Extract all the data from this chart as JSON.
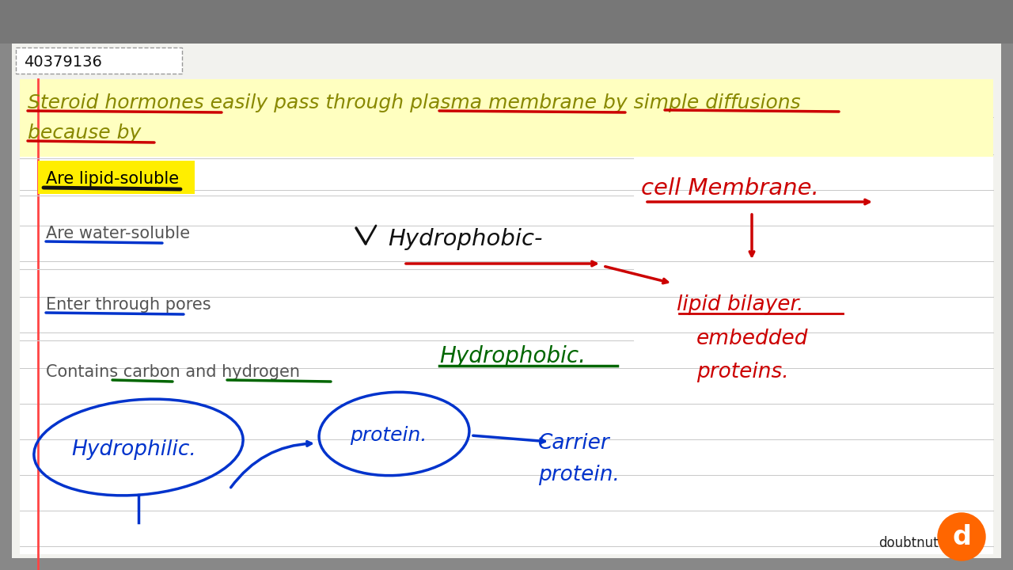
{
  "bg_color": "#888888",
  "top_bar_color": "#555555",
  "white_bg": "#f0f0f0",
  "content_bg": "#ffffff",
  "question_number": "40379136",
  "title_line1": "Steroid hormones easily pass through plasma membrane by simple diffusions",
  "title_line2": "because by",
  "title_bg": "#ffffaa",
  "title_color": "#888800",
  "option1": "Are lipid-soluble",
  "option1_bg": "#ffff00",
  "option1_color": "#000000",
  "option2": "Are water-soluble",
  "option2_color": "#555555",
  "option3": "Enter through pores",
  "option3_color": "#555555",
  "option4": "Contains carbon and hydrogen",
  "option4_color": "#555555",
  "red_color": "#cc0000",
  "blue_color": "#0033cc",
  "green_color": "#006600",
  "dark_color": "#222222",
  "line_color": "#cccccc",
  "ruled_line_color": "#c8c8c8"
}
